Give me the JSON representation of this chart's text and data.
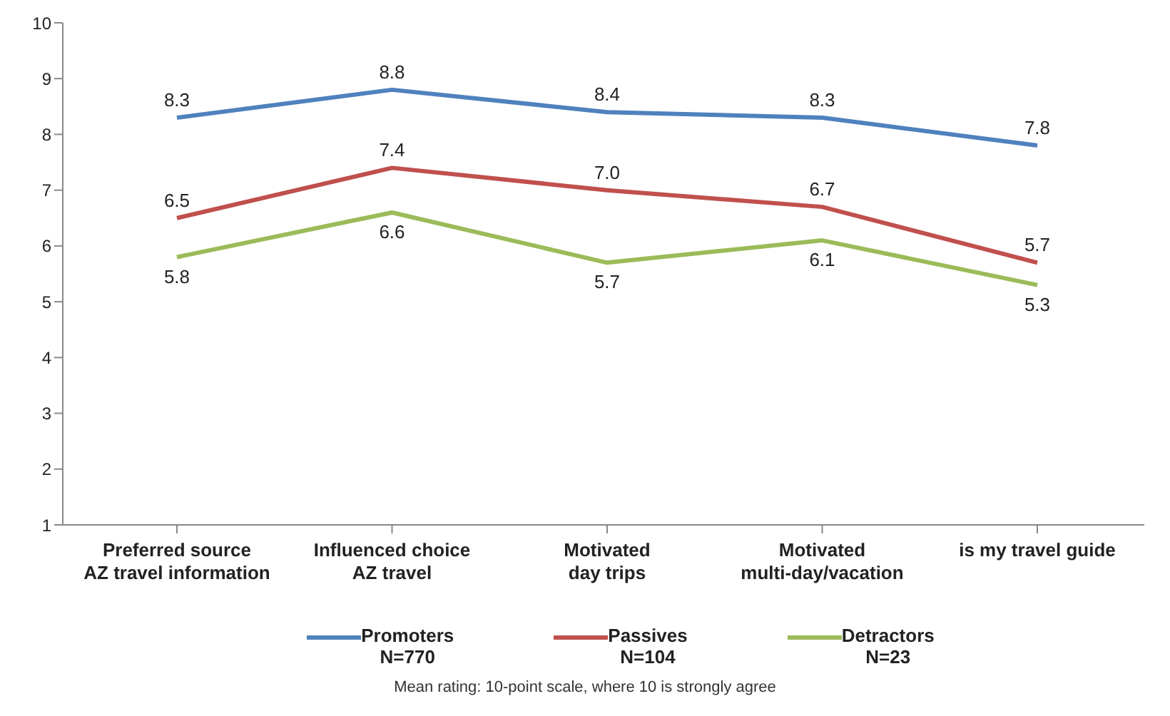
{
  "chart_data": {
    "type": "line",
    "categories": [
      "Preferred source\nAZ travel information",
      "Influenced choice\nAZ travel",
      "Motivated\nday trips",
      "Motivated\nmulti-day/vacation",
      "is my travel guide"
    ],
    "series": [
      {
        "name": "Promoters\nN=770",
        "color": "#4f81bd",
        "values": [
          8.3,
          8.8,
          8.4,
          8.3,
          7.8
        ],
        "value_labels": [
          "8.3",
          "8.8",
          "8.4",
          "8.3",
          "7.8"
        ]
      },
      {
        "name": "Passives\nN=104",
        "color": "#c0504d",
        "values": [
          6.5,
          7.4,
          7.0,
          6.7,
          5.7
        ],
        "value_labels": [
          "6.5",
          "7.4",
          "7.0",
          "6.7",
          "5.7"
        ]
      },
      {
        "name": "Detractors\nN=23",
        "color": "#9bbb59",
        "values": [
          5.8,
          6.6,
          5.7,
          6.1,
          5.3
        ],
        "value_labels": [
          "5.8",
          "6.6",
          "5.7",
          "6.1",
          "5.3"
        ]
      }
    ],
    "ylim": [
      1,
      10
    ],
    "yticks": [
      1,
      2,
      3,
      4,
      5,
      6,
      7,
      8,
      9,
      10
    ],
    "grid": false,
    "legend": "bottom",
    "marker": "none",
    "line_style": "solid",
    "annotations": [
      "Mean rating: 10-point scale, where 10 is strongly agree"
    ]
  }
}
